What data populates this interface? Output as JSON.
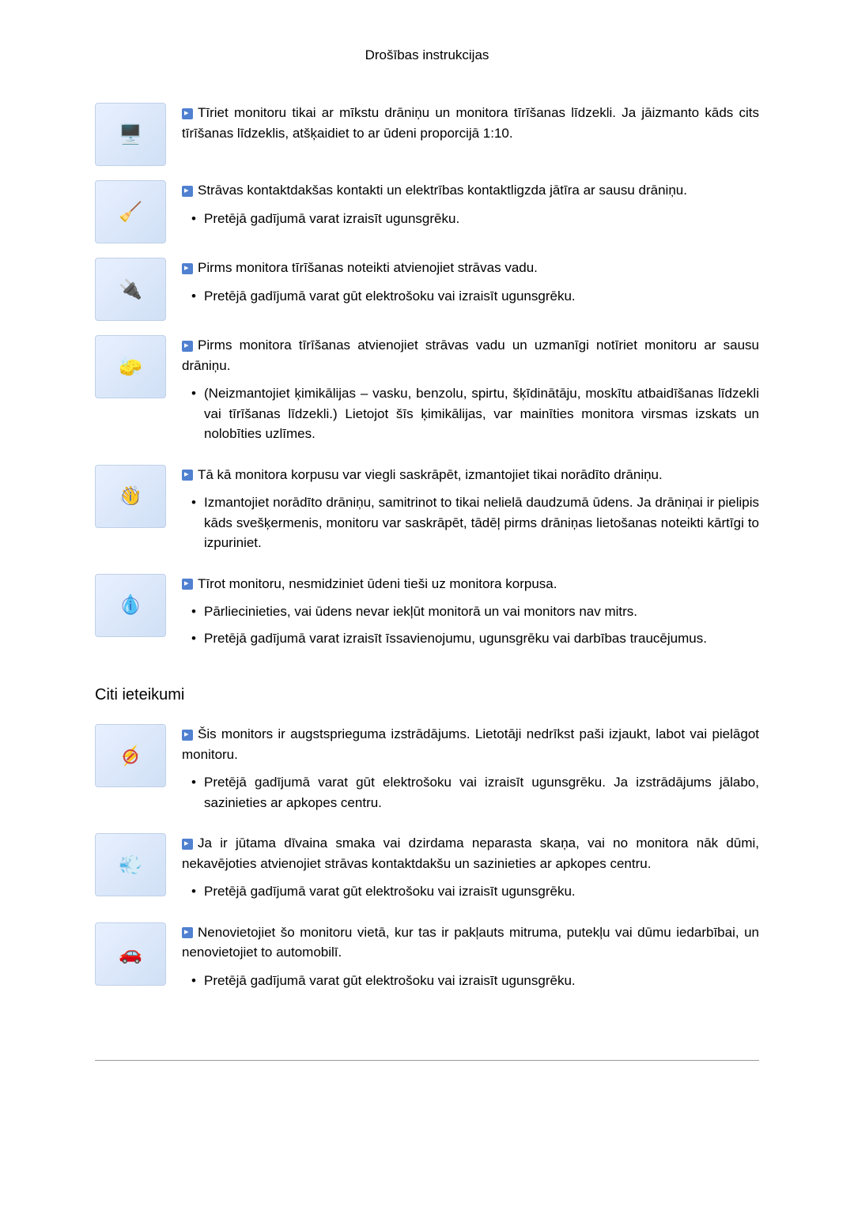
{
  "header": {
    "title": "Drošības instrukcijas"
  },
  "sections": [
    {
      "items": [
        {
          "hasIcon": true,
          "iconType": "monitor",
          "mainText": "Tīriet monitoru tikai ar mīkstu drāniņu un monitora tīrīšanas līdzekli. Ja jāizmanto kāds cits tīrīšanas līdzeklis, atšķaidiet to ar ūdeni proporcijā 1:10.",
          "bullets": []
        },
        {
          "hasIcon": true,
          "iconType": "cleaning",
          "mainText": "Strāvas kontaktdakšas kontakti un elektrības kontaktligzda jātīra ar sausu drāniņu.",
          "bullets": [
            "Pretējā gadījumā varat izraisīt ugunsgrēku."
          ]
        },
        {
          "hasIcon": true,
          "iconType": "unplug",
          "mainText": "Pirms monitora tīrīšanas noteikti atvienojiet strāvas vadu.",
          "bullets": [
            "Pretējā gadījumā varat gūt elektrošoku vai izraisīt ugunsgrēku."
          ]
        },
        {
          "hasIcon": true,
          "iconType": "clean-monitor",
          "mainText": "Pirms monitora tīrīšanas atvienojiet strāvas vadu un uzmanīgi notīriet monitoru ar sausu drāniņu.",
          "bullets": [
            "(Neizmantojiet ķimikālijas – vasku, benzolu, spirtu, šķīdinātāju, moskītu atbaidīšanas līdzekli vai tīrīšanas līdzekli.) Lietojot šīs ķimikālijas, var mainīties monitora virsmas izskats un nolobīties uzlīmes."
          ]
        },
        {
          "hasIcon": true,
          "iconType": "info",
          "mainText": "Tā kā monitora korpusu var viegli saskrāpēt, izmantojiet tikai norādīto drāniņu.",
          "bullets": [
            "Izmantojiet norādīto drāniņu, samitrinot to tikai nelielā daudzumā ūdens. Ja drāniņai ir pielipis kāds svešķermenis, monitoru var saskrāpēt, tādēļ pirms drāniņas lietošanas noteikti kārtīgi to izpuriniet."
          ]
        },
        {
          "hasIcon": true,
          "iconType": "info",
          "mainText": "Tīrot monitoru, nesmidziniet ūdeni tieši uz monitora korpusa.",
          "bullets": [
            "Pārliecinieties, vai ūdens nevar iekļūt monitorā un vai monitors nav mitrs.",
            "Pretējā gadījumā varat izraisīt īssavienojumu, ugunsgrēku vai darbības traucējumus."
          ]
        }
      ]
    }
  ],
  "section2": {
    "heading": "Citi ieteikumi",
    "items": [
      {
        "hasIcon": true,
        "iconType": "prohibition",
        "mainText": "Šis monitors ir augstsprieguma izstrādājums. Lietotāji nedrīkst paši izjaukt, labot vai pielāgot monitoru.",
        "bullets": [
          "Pretējā gadījumā varat gūt elektrošoku vai izraisīt ugunsgrēku. Ja izstrādājums jālabo, sazinieties ar apkopes centru."
        ]
      },
      {
        "hasIcon": true,
        "iconType": "smoke",
        "mainText": "Ja ir jūtama dīvaina smaka vai dzirdama neparasta skaņa, vai no monitora nāk dūmi, nekavējoties atvienojiet strāvas kontaktdakšu un sazinieties ar apkopes centru.",
        "bullets": [
          "Pretējā gadījumā varat gūt elektrošoku vai izraisīt ugunsgrēku."
        ]
      },
      {
        "hasIcon": true,
        "iconType": "location",
        "mainText": "Nenovietojiet šo monitoru vietā, kur tas ir pakļauts mitruma, putekļu vai dūmu iedarbībai, un nenovietojiet to automobilī.",
        "bullets": [
          "Pretējā gadījumā varat gūt elektrošoku vai izraisīt ugunsgrēku."
        ]
      }
    ]
  },
  "colors": {
    "text": "#000000",
    "background": "#ffffff",
    "bulletBg": "#5080d0",
    "iconBg": "#e8f0ff",
    "footerLine": "#999999"
  },
  "typography": {
    "bodyFontSize": 17,
    "headingFontSize": 20,
    "headerFontSize": 17,
    "lineHeight": 1.5
  }
}
